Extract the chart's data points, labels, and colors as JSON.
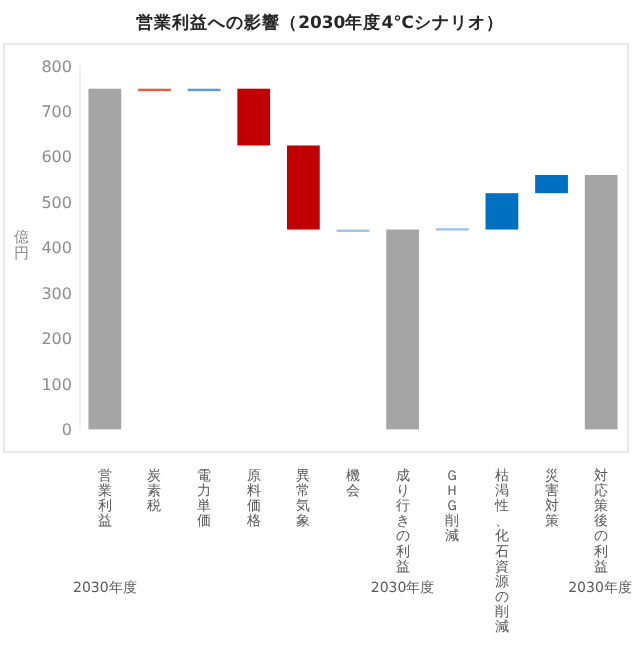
{
  "chart_data": {
    "type": "bar",
    "title": "営業利益への影響（2030年度4℃シナリオ）",
    "ylabel": "億円",
    "categories": [
      "営業利益",
      "炭素税",
      "電力単価",
      "原料価格",
      "異常気象",
      "機会",
      "成り行きの利益",
      "ＧＨＧ削減",
      "枯渇性、化石資源の削減",
      "災害対策",
      "対応策後の利益"
    ],
    "values": [
      750,
      -3,
      3,
      -125,
      -185,
      3,
      440,
      3,
      80,
      40,
      560
    ],
    "base": [
      0,
      750,
      747,
      750,
      625,
      437,
      0,
      440,
      440,
      520,
      0
    ],
    "colors": [
      "#a5a5a5",
      "#ee5a35",
      "#5b9bd5",
      "#c00000",
      "#c00000",
      "#9dc3e6",
      "#a5a5a5",
      "#9dc3e6",
      "#0070c0",
      "#0070c0",
      "#a5a5a5"
    ],
    "ylim": [
      0,
      800
    ],
    "yticks": [
      0,
      100,
      200,
      300,
      400,
      500,
      600,
      700,
      800
    ],
    "grid": false,
    "annotations": [
      "2030年度",
      "2030年度",
      "2030年度"
    ]
  }
}
